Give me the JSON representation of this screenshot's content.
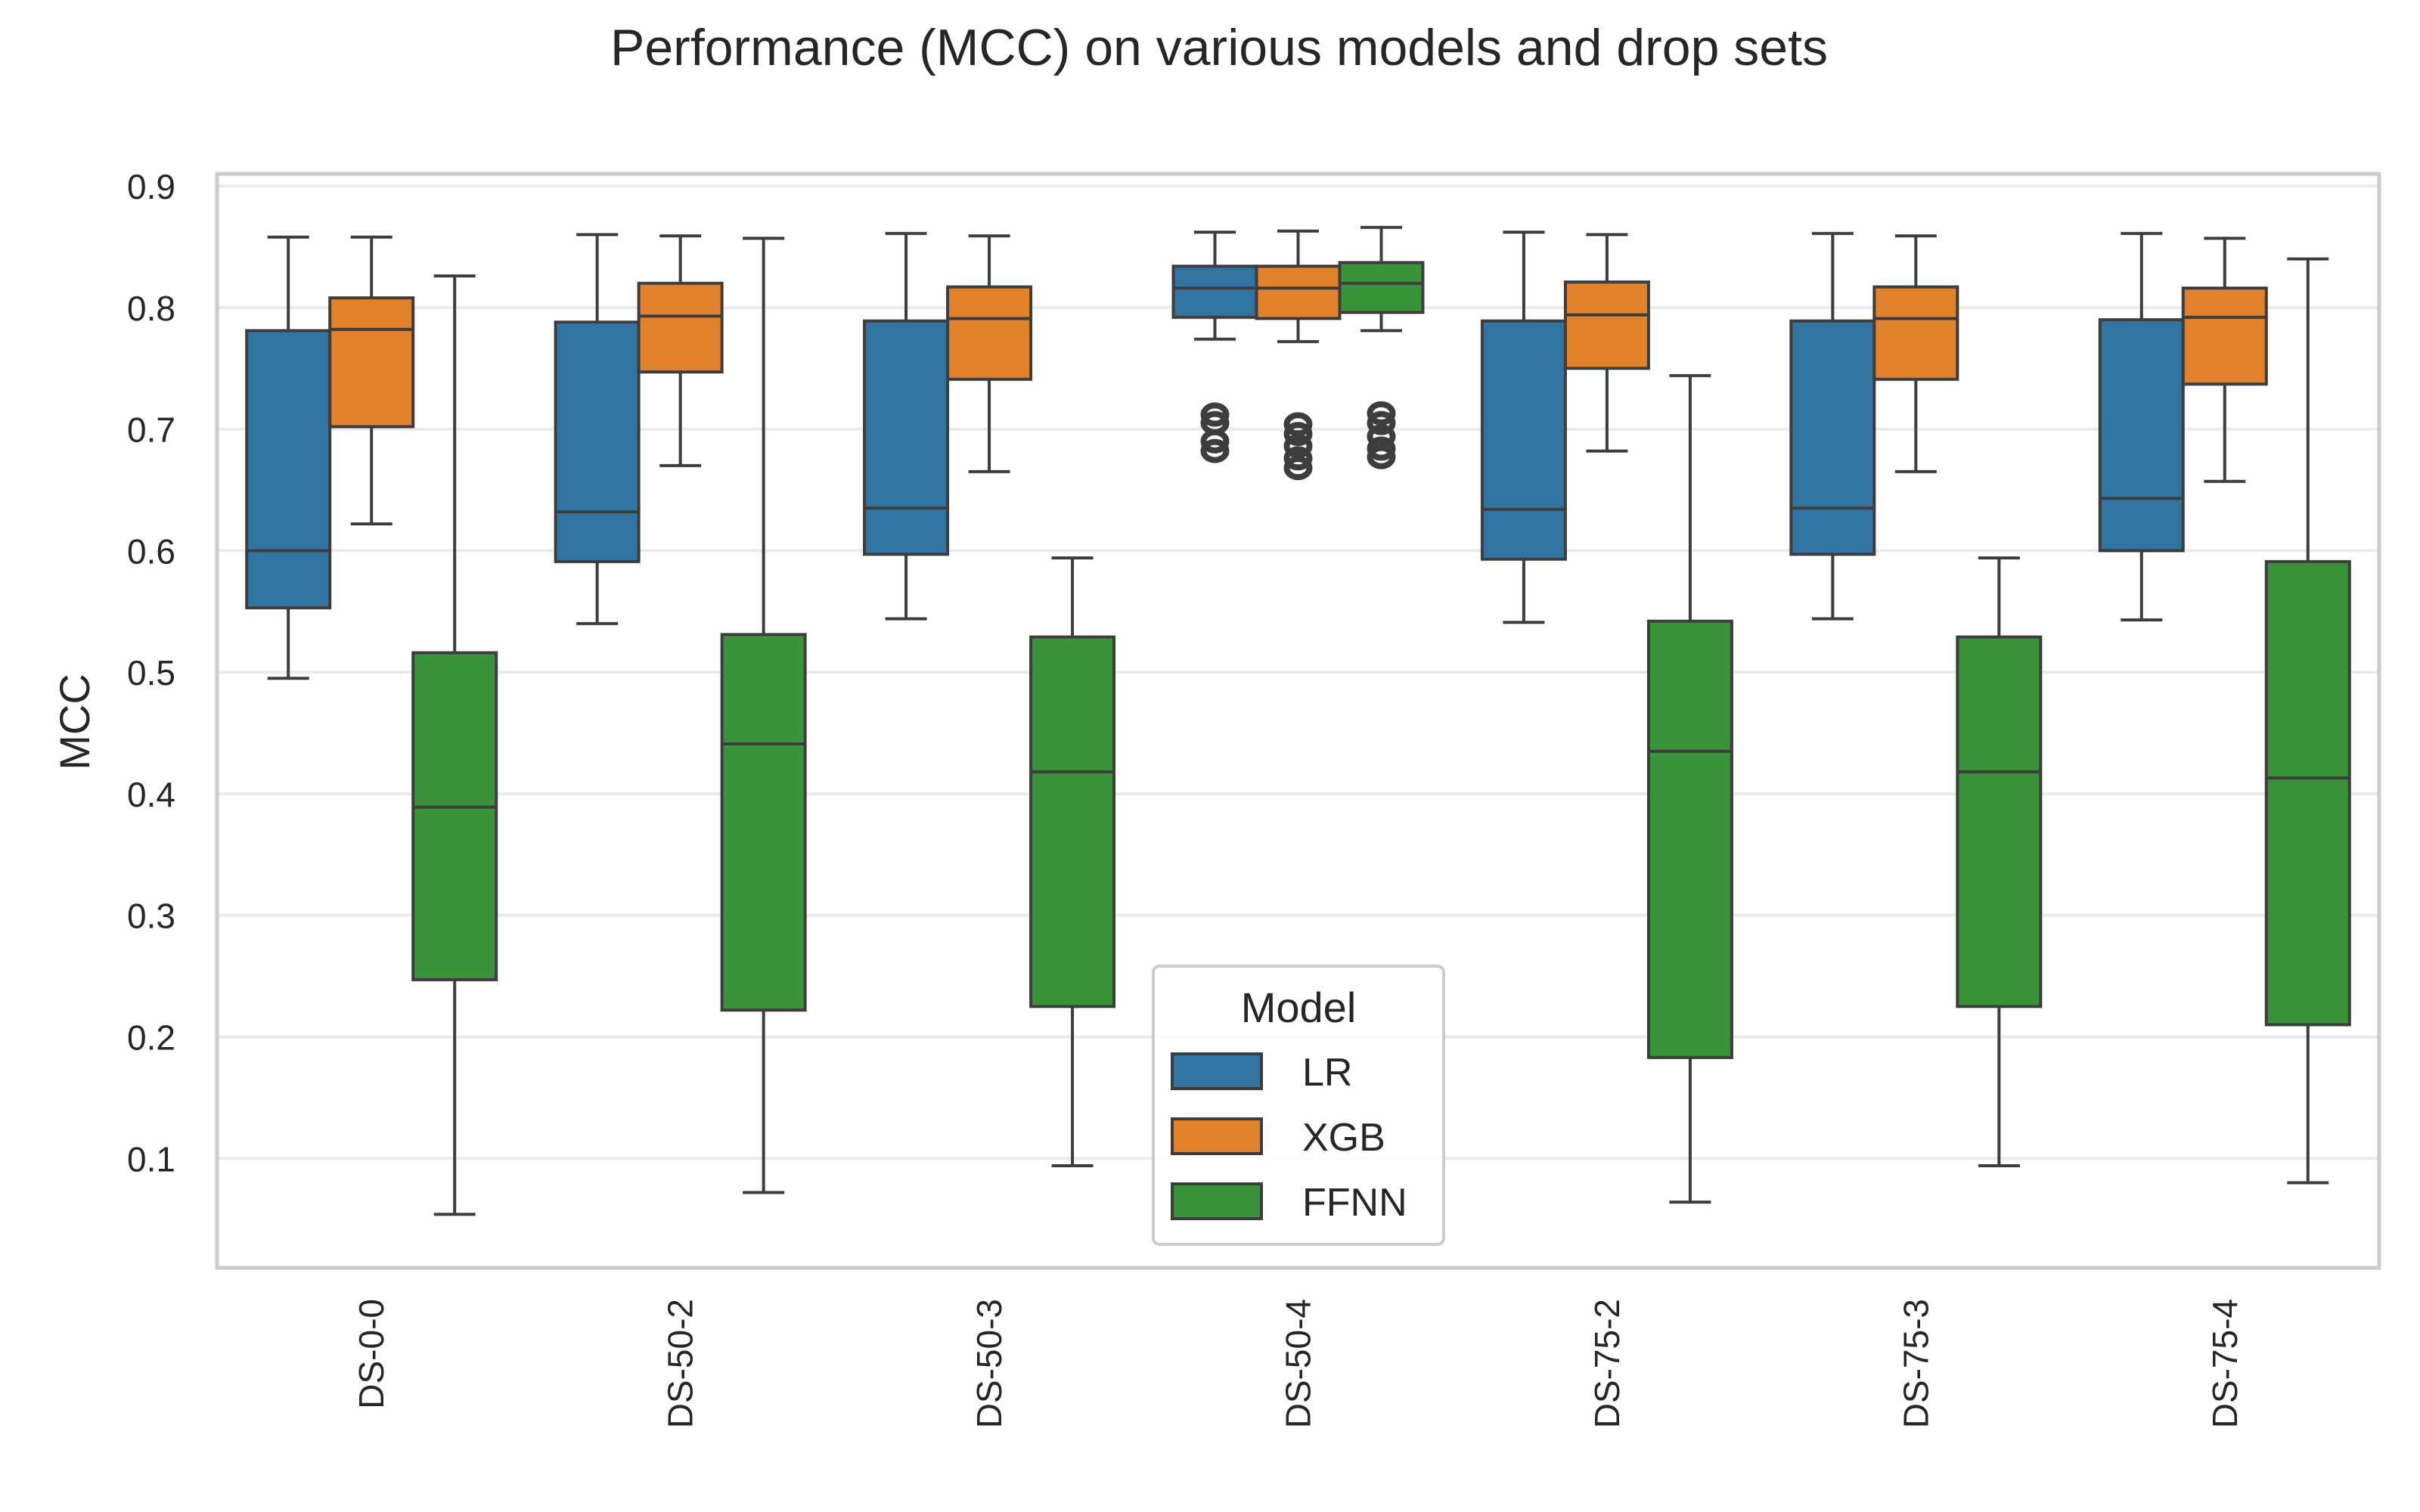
{
  "chart_data": {
    "type": "box",
    "title": "Performance (MCC) on various models and drop sets",
    "xlabel": "",
    "ylabel": "MCC",
    "ylim": [
      0.01,
      0.91
    ],
    "yticks": [
      0.1,
      0.2,
      0.3,
      0.4,
      0.5,
      0.6,
      0.7,
      0.8,
      0.9
    ],
    "grid": true,
    "legend": {
      "title": "Model",
      "placement": "bottom-center"
    },
    "categories": [
      "DS-0-0",
      "DS-50-2",
      "DS-50-3",
      "DS-50-4",
      "DS-75-2",
      "DS-75-3",
      "DS-75-4"
    ],
    "series": [
      {
        "name": "LR",
        "color": "#3274a1",
        "boxes": [
          {
            "whislo": 0.495,
            "q1": 0.553,
            "med": 0.6,
            "q3": 0.781,
            "whishi": 0.858,
            "fliers": []
          },
          {
            "whislo": 0.54,
            "q1": 0.591,
            "med": 0.632,
            "q3": 0.788,
            "whishi": 0.86,
            "fliers": []
          },
          {
            "whislo": 0.544,
            "q1": 0.597,
            "med": 0.635,
            "q3": 0.789,
            "whishi": 0.861,
            "fliers": []
          },
          {
            "whislo": 0.774,
            "q1": 0.792,
            "med": 0.816,
            "q3": 0.834,
            "whishi": 0.862,
            "fliers": [
              0.682,
              0.69,
              0.705,
              0.712
            ]
          },
          {
            "whislo": 0.541,
            "q1": 0.593,
            "med": 0.634,
            "q3": 0.789,
            "whishi": 0.862,
            "fliers": []
          },
          {
            "whislo": 0.544,
            "q1": 0.597,
            "med": 0.635,
            "q3": 0.789,
            "whishi": 0.861,
            "fliers": []
          },
          {
            "whislo": 0.543,
            "q1": 0.6,
            "med": 0.643,
            "q3": 0.79,
            "whishi": 0.861,
            "fliers": []
          }
        ]
      },
      {
        "name": "XGB",
        "color": "#e1812c",
        "boxes": [
          {
            "whislo": 0.622,
            "q1": 0.702,
            "med": 0.782,
            "q3": 0.808,
            "whishi": 0.858,
            "fliers": []
          },
          {
            "whislo": 0.67,
            "q1": 0.747,
            "med": 0.793,
            "q3": 0.82,
            "whishi": 0.859,
            "fliers": []
          },
          {
            "whislo": 0.665,
            "q1": 0.741,
            "med": 0.791,
            "q3": 0.817,
            "whishi": 0.859,
            "fliers": []
          },
          {
            "whislo": 0.772,
            "q1": 0.791,
            "med": 0.816,
            "q3": 0.834,
            "whishi": 0.863,
            "fliers": [
              0.668,
              0.676,
              0.686,
              0.696,
              0.704
            ]
          },
          {
            "whislo": 0.682,
            "q1": 0.75,
            "med": 0.794,
            "q3": 0.821,
            "whishi": 0.86,
            "fliers": []
          },
          {
            "whislo": 0.665,
            "q1": 0.741,
            "med": 0.791,
            "q3": 0.817,
            "whishi": 0.859,
            "fliers": []
          },
          {
            "whislo": 0.657,
            "q1": 0.737,
            "med": 0.792,
            "q3": 0.816,
            "whishi": 0.857,
            "fliers": []
          }
        ]
      },
      {
        "name": "FFNN",
        "color": "#3a923a",
        "boxes": [
          {
            "whislo": 0.054,
            "q1": 0.247,
            "med": 0.389,
            "q3": 0.516,
            "whishi": 0.826,
            "fliers": []
          },
          {
            "whislo": 0.072,
            "q1": 0.222,
            "med": 0.441,
            "q3": 0.531,
            "whishi": 0.857,
            "fliers": []
          },
          {
            "whislo": 0.094,
            "q1": 0.225,
            "med": 0.418,
            "q3": 0.529,
            "whishi": 0.594,
            "fliers": []
          },
          {
            "whislo": 0.781,
            "q1": 0.796,
            "med": 0.82,
            "q3": 0.837,
            "whishi": 0.866,
            "fliers": [
              0.677,
              0.684,
              0.694,
              0.705,
              0.713
            ]
          },
          {
            "whislo": 0.064,
            "q1": 0.183,
            "med": 0.435,
            "q3": 0.542,
            "whishi": 0.744,
            "fliers": []
          },
          {
            "whislo": 0.094,
            "q1": 0.225,
            "med": 0.418,
            "q3": 0.529,
            "whishi": 0.594,
            "fliers": []
          },
          {
            "whislo": 0.08,
            "q1": 0.21,
            "med": 0.413,
            "q3": 0.591,
            "whishi": 0.84,
            "fliers": []
          }
        ]
      }
    ]
  }
}
